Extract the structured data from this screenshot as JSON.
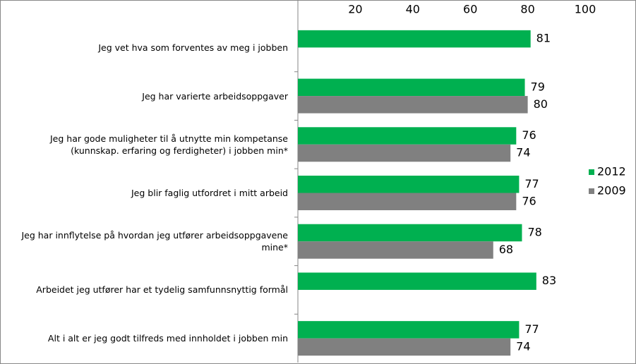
{
  "chart_data": {
    "type": "bar",
    "orientation": "horizontal",
    "categories": [
      "Jeg vet hva som forventes av meg i jobben",
      "Jeg har varierte arbeidsoppgaver",
      "Jeg har gode muligheter til å utnytte min kompetanse (kunnskap. erfaring og ferdigheter) i jobben min*",
      "Jeg blir faglig utfordret i mitt arbeid",
      "Jeg har innflytelse på hvordan jeg utfører arbeidsoppgavene mine*",
      "Arbeidet jeg utfører har et tydelig samfunnsnyttig formål",
      "Alt i alt er jeg godt tilfreds med innholdet i jobben min"
    ],
    "series": [
      {
        "name": "2012",
        "color": "#00b050",
        "values": [
          81,
          79,
          76,
          77,
          78,
          83,
          77
        ]
      },
      {
        "name": "2009",
        "color": "#808080",
        "values": [
          null,
          80,
          74,
          76,
          68,
          null,
          74
        ]
      }
    ],
    "xlim": [
      0,
      100
    ],
    "xticks": [
      20,
      40,
      60,
      80,
      100
    ],
    "legend": "right"
  }
}
